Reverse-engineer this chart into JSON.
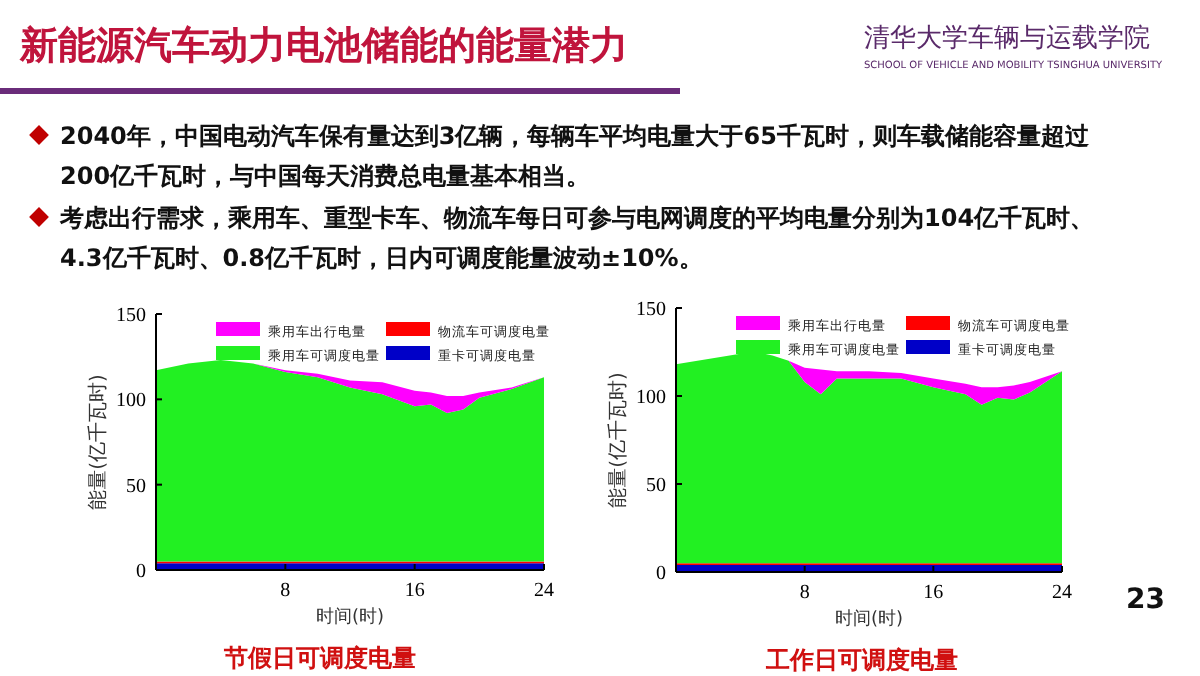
{
  "chart_data": [
    {
      "type": "area",
      "stacked": true,
      "title": "节假日可调度电量",
      "xlabel": "时间(时)",
      "ylabel": "能量(亿千瓦时)",
      "legend": "top",
      "grid": false,
      "x": [
        0,
        2,
        4,
        6,
        8,
        10,
        12,
        14,
        16,
        17,
        18,
        19,
        20,
        22,
        24
      ],
      "xlim": [
        0,
        24
      ],
      "xticks": [
        8,
        16,
        24
      ],
      "ylim": [
        0,
        150
      ],
      "yticks": [
        0,
        50,
        100,
        150
      ],
      "series": [
        {
          "name": "重卡可调度电量",
          "color": "#0000c8",
          "values": [
            4,
            4,
            4,
            4,
            4,
            4,
            4,
            4,
            4,
            4,
            4,
            4,
            4,
            4,
            4
          ]
        },
        {
          "name": "物流车可调度电量",
          "color": "#ff0000",
          "values": [
            1,
            1,
            1,
            1,
            1,
            1,
            1,
            1,
            1,
            1,
            1,
            1,
            1,
            1,
            1
          ]
        },
        {
          "name": "乘用车可调度电量",
          "color": "#22f022",
          "values": [
            112,
            116,
            118,
            116,
            111,
            108,
            102,
            98,
            91,
            92,
            87,
            89,
            96,
            101,
            108
          ]
        },
        {
          "name": "乘用车出行电量",
          "color": "#ff00ff",
          "values": [
            0,
            0,
            0,
            0,
            1,
            2,
            4,
            7,
            9,
            7,
            10,
            8,
            3,
            1,
            0
          ]
        }
      ],
      "annotations": [
        "新能源汽车动力电池储能的能量潜力",
        "2040年，中国电动汽车保有量达到3亿辆，每辆车平均电量大于65千瓦时，则车载储能容量超过200亿千瓦时，与中国每天消费总电量基本相当。",
        "考虑出行需求，乘用车、重型卡车、物流车每日可参与电网调度的平均电量分别为104亿千瓦时、4.3亿千瓦时、0.8亿千瓦时，日内可调度能量波动±10%。",
        "清华大学车辆与运载学院",
        "SCHOOL OF VEHICLE AND MOBILITY TSINGHUA UNIVERSITY",
        "23"
      ]
    },
    {
      "type": "area",
      "stacked": true,
      "title": "工作日可调度电量",
      "xlabel": "时间(时)",
      "ylabel": "能量(亿千瓦时)",
      "legend": "top",
      "grid": false,
      "x": [
        0,
        2,
        4,
        5,
        6,
        7,
        8,
        9,
        10,
        12,
        14,
        16,
        18,
        19,
        20,
        21,
        22,
        24
      ],
      "xlim": [
        0,
        24
      ],
      "xticks": [
        8,
        16,
        24
      ],
      "ylim": [
        0,
        150
      ],
      "yticks": [
        0,
        50,
        100,
        150
      ],
      "series": [
        {
          "name": "重卡可调度电量",
          "color": "#0000c8",
          "values": [
            4,
            4,
            4,
            4,
            4,
            4,
            4,
            4,
            4,
            4,
            4,
            4,
            4,
            4,
            4,
            4,
            4,
            4
          ]
        },
        {
          "name": "物流车可调度电量",
          "color": "#ff0000",
          "values": [
            1,
            1,
            1,
            1,
            1,
            1,
            1,
            1,
            1,
            1,
            1,
            1,
            1,
            1,
            1,
            1,
            1,
            1
          ]
        },
        {
          "name": "乘用车可调度电量",
          "color": "#22f022",
          "values": [
            113,
            116,
            119,
            120,
            118,
            115,
            103,
            96,
            105,
            105,
            105,
            100,
            96,
            90,
            94,
            93,
            97,
            109
          ]
        },
        {
          "name": "乘用车出行电量",
          "color": "#ff00ff",
          "values": [
            0,
            0,
            0,
            0,
            0,
            0,
            8,
            14,
            4,
            4,
            3,
            5,
            6,
            10,
            6,
            8,
            6,
            0
          ]
        }
      ]
    }
  ]
}
